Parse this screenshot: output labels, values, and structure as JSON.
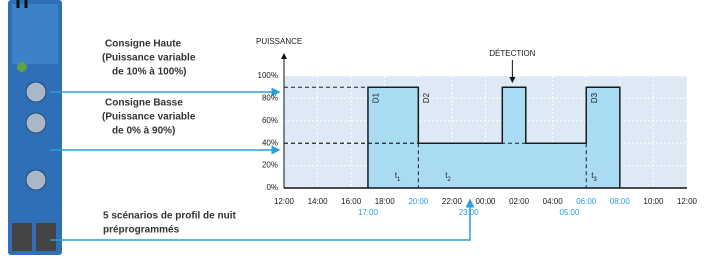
{
  "callouts": [
    {
      "lines": [
        "Consigne Haute",
        "(Puissance variable",
        "de 10% à 100%)"
      ]
    },
    {
      "lines": [
        "Consigne Basse",
        "(Puissance variable",
        "de 0% à 90%)"
      ]
    },
    {
      "lines": [
        "5 scénarios de profil de nuit",
        "préprogrammés"
      ]
    }
  ],
  "chart_data": {
    "type": "line",
    "y_label": "PUISSANCE",
    "xlim": [
      12,
      36
    ],
    "ylim": [
      0,
      100
    ],
    "xticks": [
      {
        "value": 12,
        "label": "12:00"
      },
      {
        "value": 14,
        "label": "14:00"
      },
      {
        "value": 16,
        "label": "16:00"
      },
      {
        "value": 18,
        "label": "18:00"
      },
      {
        "value": 20,
        "label": "20:00",
        "color": "#2a9fd8"
      },
      {
        "value": 22,
        "label": "22:00"
      },
      {
        "value": 24,
        "label": "00:00"
      },
      {
        "value": 26,
        "label": "02:00"
      },
      {
        "value": 28,
        "label": "04:00"
      },
      {
        "value": 30,
        "label": "06:00",
        "color": "#2a9fd8"
      },
      {
        "value": 32,
        "label": "08:00",
        "color": "#2a9fd8"
      },
      {
        "value": 34,
        "label": "10:00"
      },
      {
        "value": 36,
        "label": "12:00"
      }
    ],
    "yticks": [
      {
        "value": 0,
        "label": "0%"
      },
      {
        "value": 20,
        "label": "20%"
      },
      {
        "value": 40,
        "label": "40%"
      },
      {
        "value": 60,
        "label": "60%"
      },
      {
        "value": 80,
        "label": "80%"
      },
      {
        "value": 100,
        "label": "100%"
      }
    ],
    "grid": true,
    "series": [
      {
        "color": "#1a1a1a",
        "fill": "#a9dcf3",
        "x": [
          12,
          17,
          17,
          20,
          20,
          25,
          25,
          26.4,
          26.4,
          30,
          30,
          32,
          32,
          36
        ],
        "values": [
          0,
          0,
          90,
          90,
          40,
          40,
          90,
          90,
          40,
          40,
          90,
          90,
          0,
          0
        ]
      }
    ],
    "phase_labels": [
      {
        "x": 17.5,
        "label": "D1"
      },
      {
        "x": 20.5,
        "label": "D2"
      },
      {
        "x": 30.5,
        "label": "D3"
      }
    ],
    "periods": [
      {
        "x": 18.6,
        "label": "t",
        "sub": "1"
      },
      {
        "x": 21.6,
        "label": "t",
        "sub": "2"
      },
      {
        "x": 30.3,
        "label": "t",
        "sub": "3"
      }
    ],
    "time_labels": [
      {
        "x": 17,
        "label": "17:00"
      },
      {
        "x": 23,
        "label": "23:00"
      },
      {
        "x": 29,
        "label": "05:00"
      }
    ],
    "detection": {
      "label": "DÉTECTION",
      "x": 25.6
    }
  }
}
